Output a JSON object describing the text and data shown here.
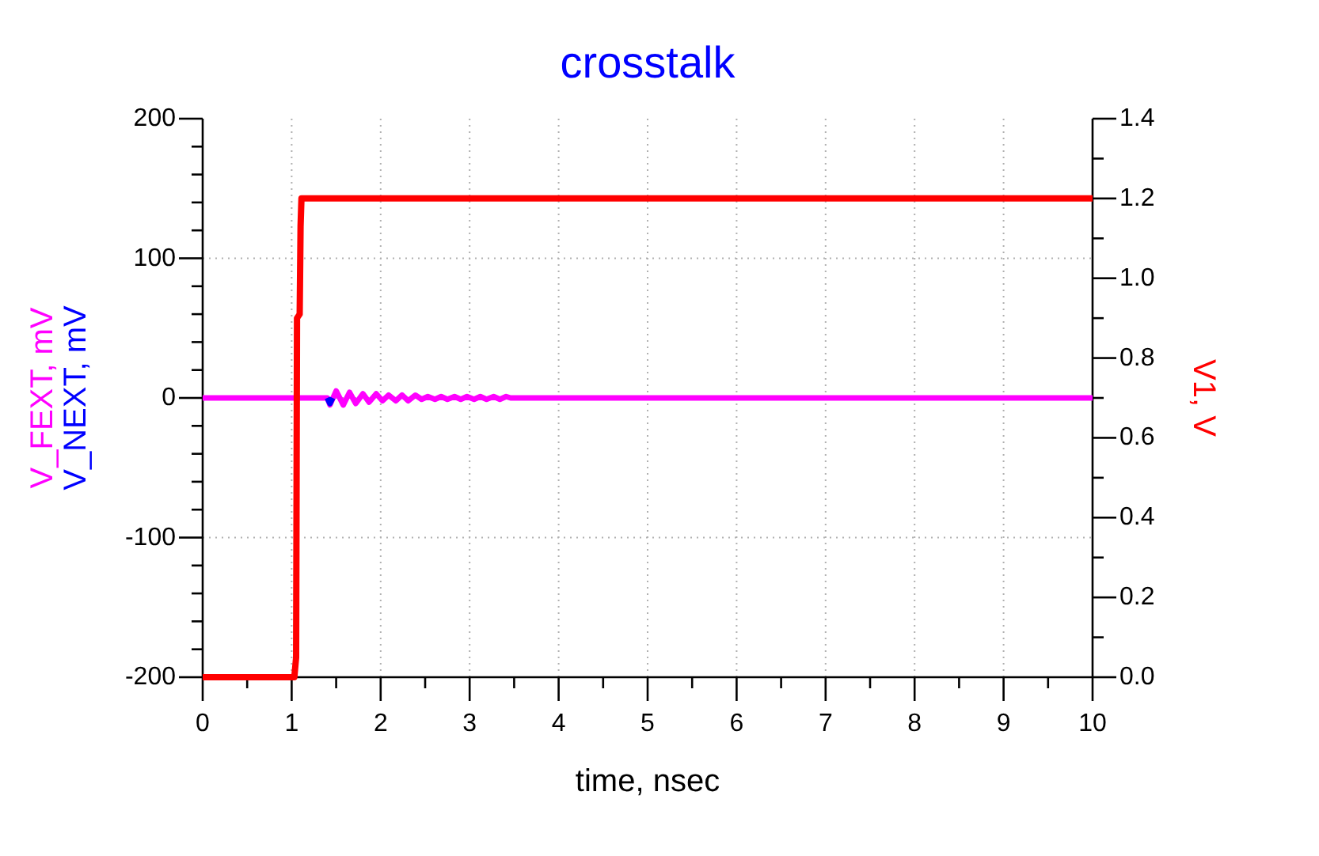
{
  "chart_data": {
    "type": "line",
    "title": "crosstalk",
    "xlabel": "time, nsec",
    "xlim": [
      0,
      10
    ],
    "xticks": [
      0,
      {
        "value": 0.5,
        "label": null
      },
      1,
      {
        "value": 1.5,
        "label": null
      },
      2,
      {
        "value": 2.5,
        "label": null
      },
      3,
      {
        "value": 3.5,
        "label": null
      },
      4,
      {
        "value": 4.5,
        "label": null
      },
      5,
      {
        "value": 5.5,
        "label": null
      },
      6,
      {
        "value": 6.5,
        "label": null
      },
      7,
      {
        "value": 7.5,
        "label": null
      },
      8,
      {
        "value": 8.5,
        "label": null
      },
      9,
      {
        "value": 9.5,
        "label": null
      },
      10
    ],
    "ylim": [
      -200,
      200
    ],
    "yticks": [
      -200,
      {
        "value": -180,
        "label": null
      },
      {
        "value": -160,
        "label": null
      },
      {
        "value": -140,
        "label": null
      },
      {
        "value": -120,
        "label": null
      },
      -100,
      {
        "value": -80,
        "label": null
      },
      {
        "value": -60,
        "label": null
      },
      {
        "value": -40,
        "label": null
      },
      {
        "value": -20,
        "label": null
      },
      0,
      {
        "value": 20,
        "label": null
      },
      {
        "value": 40,
        "label": null
      },
      {
        "value": 60,
        "label": null
      },
      {
        "value": 80,
        "label": null
      },
      100,
      {
        "value": 120,
        "label": null
      },
      {
        "value": 140,
        "label": null
      },
      {
        "value": 160,
        "label": null
      },
      {
        "value": 180,
        "label": null
      },
      200
    ],
    "y2lim": [
      0,
      1.4
    ],
    "y2ticks": [
      {
        "value": 0,
        "label": "0.0"
      },
      {
        "value": 0.1,
        "label": null
      },
      0.2,
      {
        "value": 0.3,
        "label": null
      },
      0.4,
      {
        "value": 0.5,
        "label": null
      },
      0.6,
      {
        "value": 0.7,
        "label": null
      },
      0.8,
      {
        "value": 0.9,
        "label": null
      },
      {
        "value": 1,
        "label": "1.0"
      },
      {
        "value": 1.1,
        "label": null
      },
      1.2,
      {
        "value": 1.3,
        "label": null
      },
      1.4
    ],
    "grid": true,
    "series": [
      {
        "name": "V_FEXT, mV",
        "color": "#ff00ff",
        "x": [
          0,
          1.4,
          1.43,
          1.5,
          1.58,
          1.65,
          1.72,
          1.8,
          1.87,
          1.95,
          2.02,
          2.09,
          2.17,
          2.24,
          2.31,
          2.39,
          2.46,
          2.53,
          2.61,
          2.68,
          2.75,
          2.83,
          2.9,
          2.97,
          3.05,
          3.12,
          3.19,
          3.27,
          3.34,
          3.41,
          3.46,
          10
        ],
        "values": [
          0,
          0,
          -5,
          5,
          -5,
          4,
          -4,
          3,
          -3,
          3,
          -2,
          2,
          -2,
          2,
          -2,
          2,
          -1,
          1,
          -1,
          1,
          -1,
          1,
          -1,
          1,
          -1,
          1,
          -1,
          1,
          -1,
          1,
          0,
          0
        ]
      },
      {
        "name": "V_NEXT, mV",
        "color": "#0000ff",
        "x": [
          1.4,
          1.43,
          1.46
        ],
        "values": [
          0,
          -4,
          0
        ]
      },
      {
        "name": "V1, V",
        "color": "#ff0000",
        "axis": "y2",
        "x": [
          0,
          1.03,
          1.05,
          1.06,
          1.09,
          1.1,
          1.11,
          10
        ],
        "values": [
          0,
          0,
          0.05,
          0.9,
          0.91,
          1.13,
          1.2,
          1.2
        ]
      }
    ]
  }
}
